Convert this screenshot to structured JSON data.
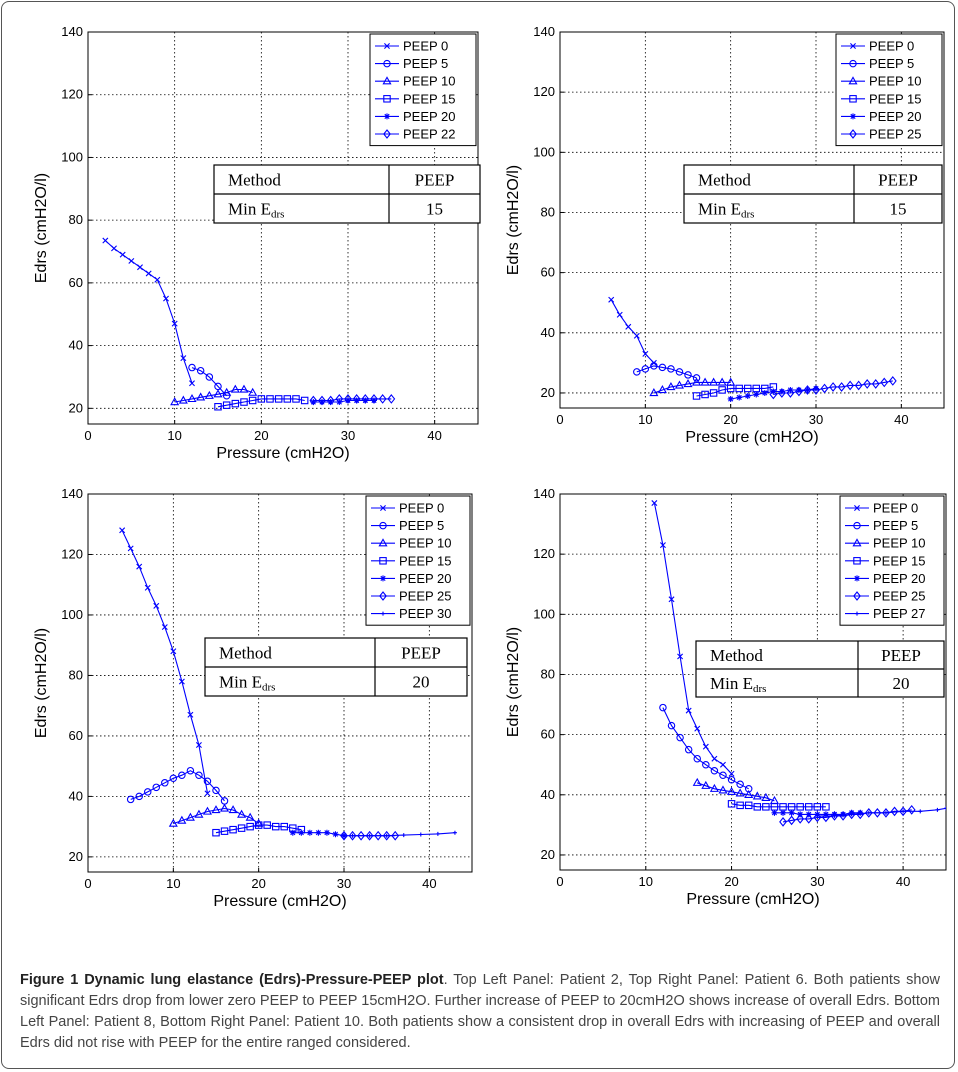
{
  "colors": {
    "series": "#0000ff",
    "frame": "#555555",
    "grid": "#000000"
  },
  "caption": {
    "title": "Figure 1 Dynamic lung elastance (Edrs)-Pressure-PEEP plot",
    "text": ". Top Left Panel: Patient 2, Top Right Panel: Patient 6. Both patients show significant Edrs drop from lower zero PEEP to PEEP 15cmH2O. Further increase of PEEP to 20cmH2O shows increase of overall Edrs. Bottom Left Panel: Patient 8, Bottom Right Panel: Patient 10. Both patients show a consistent drop in overall Edrs with increasing of PEEP and overall Edrs did not rise with PEEP for the entire ranged considered."
  },
  "chart_data": [
    {
      "type": "line",
      "xlabel": "Pressure (cmH2O)",
      "ylabel": "Edrs (cmH2O/l)",
      "xlim": [
        0,
        45
      ],
      "ylim": [
        15,
        140
      ],
      "xticks": [
        0,
        10,
        20,
        30,
        40
      ],
      "yticks": [
        20,
        40,
        60,
        80,
        100,
        120,
        140
      ],
      "grid": true,
      "legend": "top-right",
      "table": {
        "headers": [
          "Method",
          "PEEP"
        ],
        "row": [
          "Min E",
          "drs",
          "15"
        ]
      },
      "series": [
        {
          "name": "PEEP 0",
          "marker": "x",
          "x": [
            2,
            3,
            4,
            5,
            6,
            7,
            8,
            9,
            10,
            11,
            12
          ],
          "y": [
            73.5,
            71,
            69,
            67,
            65,
            63,
            61,
            55,
            47,
            36,
            28
          ]
        },
        {
          "name": "PEEP 5",
          "marker": "o",
          "x": [
            12,
            13,
            14,
            15,
            16
          ],
          "y": [
            33,
            32,
            30,
            27,
            24
          ]
        },
        {
          "name": "PEEP 10",
          "marker": "^",
          "x": [
            10,
            11,
            12,
            13,
            14,
            15,
            16,
            17,
            18,
            19
          ],
          "y": [
            22,
            22.5,
            23,
            23.5,
            24,
            24.5,
            25,
            26,
            26,
            25
          ]
        },
        {
          "name": "PEEP 15",
          "marker": "s",
          "x": [
            15,
            16,
            17,
            18,
            19,
            20,
            21,
            22,
            23,
            24,
            25
          ],
          "y": [
            20.5,
            21,
            21.5,
            22,
            22.5,
            23,
            23,
            23,
            23,
            23,
            22.5
          ]
        },
        {
          "name": "PEEP 20",
          "marker": "*",
          "x": [
            26,
            27,
            28,
            29,
            30,
            31,
            32,
            33
          ],
          "y": [
            22,
            22,
            22,
            22,
            22.5,
            22.5,
            22.5,
            22.5
          ]
        },
        {
          "name": "PEEP 22",
          "marker": "d",
          "x": [
            26,
            27,
            28,
            29,
            30,
            31,
            32,
            33,
            34,
            35
          ],
          "y": [
            22.5,
            22.5,
            22.5,
            23,
            23,
            23,
            23,
            23,
            23,
            23
          ]
        }
      ]
    },
    {
      "type": "line",
      "xlabel": "Pressure (cmH2O)",
      "ylabel": "Edrs (cmH2O/l)",
      "xlim": [
        0,
        45
      ],
      "ylim": [
        15,
        140
      ],
      "xticks": [
        0,
        10,
        20,
        30,
        40
      ],
      "yticks": [
        20,
        40,
        60,
        80,
        100,
        120,
        140
      ],
      "grid": true,
      "legend": "top-right",
      "table": {
        "headers": [
          "Method",
          "PEEP"
        ],
        "row": [
          "Min E",
          "drs",
          "15"
        ]
      },
      "series": [
        {
          "name": "PEEP 0",
          "marker": "x",
          "x": [
            6,
            7,
            8,
            9,
            10,
            11
          ],
          "y": [
            51,
            46,
            42,
            39,
            33,
            30
          ]
        },
        {
          "name": "PEEP 5",
          "marker": "o",
          "x": [
            9,
            10,
            11,
            12,
            13,
            14,
            15,
            16
          ],
          "y": [
            27,
            28,
            29,
            28.5,
            28,
            27,
            26,
            25
          ]
        },
        {
          "name": "PEEP 10",
          "marker": "^",
          "x": [
            11,
            12,
            13,
            14,
            15,
            16,
            17,
            18,
            19,
            20
          ],
          "y": [
            20,
            21,
            22,
            22.5,
            23,
            23.5,
            23.5,
            23.5,
            23.5,
            23.5
          ]
        },
        {
          "name": "PEEP 15",
          "marker": "s",
          "x": [
            16,
            17,
            18,
            19,
            20,
            21,
            22,
            23,
            24,
            25
          ],
          "y": [
            19,
            19.5,
            20,
            21,
            21.5,
            21.5,
            21.5,
            21.5,
            21.5,
            22
          ]
        },
        {
          "name": "PEEP 20",
          "marker": "*",
          "x": [
            20,
            21,
            22,
            23,
            24,
            25,
            26,
            27,
            28,
            29,
            30
          ],
          "y": [
            18,
            18.5,
            19,
            19.5,
            20,
            20.5,
            20.5,
            21,
            21,
            21,
            21.5
          ]
        },
        {
          "name": "PEEP 25",
          "marker": "d",
          "x": [
            25,
            26,
            27,
            28,
            29,
            30,
            31,
            32,
            33,
            34,
            35,
            36,
            37,
            38,
            39
          ],
          "y": [
            19.5,
            20,
            20,
            20.5,
            21,
            21,
            21.5,
            22,
            22,
            22.5,
            22.5,
            23,
            23,
            23.5,
            24
          ]
        }
      ]
    },
    {
      "type": "line",
      "xlabel": "Pressure (cmH2O)",
      "ylabel": "Edrs (cmH2O/l)",
      "xlim": [
        0,
        45
      ],
      "ylim": [
        15,
        140
      ],
      "xticks": [
        0,
        10,
        20,
        30,
        40
      ],
      "yticks": [
        20,
        40,
        60,
        80,
        100,
        120,
        140
      ],
      "grid": true,
      "legend": "top-right",
      "table": {
        "headers": [
          "Method",
          "PEEP"
        ],
        "row": [
          "Min E",
          "drs",
          "20"
        ]
      },
      "series": [
        {
          "name": "PEEP 0",
          "marker": "x",
          "x": [
            4,
            5,
            6,
            7,
            8,
            9,
            10,
            11,
            12,
            13,
            14
          ],
          "y": [
            128,
            122,
            116,
            109,
            103,
            96,
            88,
            78,
            67,
            57,
            41
          ]
        },
        {
          "name": "PEEP 5",
          "marker": "o",
          "x": [
            5,
            6,
            7,
            8,
            9,
            10,
            11,
            12,
            13,
            14,
            15,
            16
          ],
          "y": [
            39,
            40,
            41.5,
            43,
            44.5,
            46,
            47,
            48.5,
            47,
            45,
            42,
            38.5
          ]
        },
        {
          "name": "PEEP 10",
          "marker": "^",
          "x": [
            10,
            11,
            12,
            13,
            14,
            15,
            16,
            17,
            18,
            19,
            20
          ],
          "y": [
            31,
            32,
            33,
            34,
            35,
            35.5,
            36,
            35.5,
            34,
            33,
            31
          ]
        },
        {
          "name": "PEEP 15",
          "marker": "s",
          "x": [
            15,
            16,
            17,
            18,
            19,
            20,
            21,
            22,
            23,
            24,
            25
          ],
          "y": [
            28,
            28.5,
            29,
            29.5,
            30,
            30.5,
            30.5,
            30,
            30,
            29.5,
            29
          ]
        },
        {
          "name": "PEEP 20",
          "marker": "*",
          "x": [
            24,
            25,
            26,
            27,
            28,
            29,
            30
          ],
          "y": [
            28,
            28,
            28,
            28,
            28,
            27.5,
            27
          ]
        },
        {
          "name": "PEEP 25",
          "marker": "d",
          "x": [
            30,
            31,
            32,
            33,
            34,
            35,
            36
          ],
          "y": [
            27,
            27,
            27,
            27,
            27,
            27,
            27
          ]
        },
        {
          "name": "PEEP 30",
          "marker": "+",
          "x": [
            31,
            33,
            35,
            37,
            39,
            41,
            43
          ],
          "y": [
            27,
            27,
            27,
            27.2,
            27.4,
            27.6,
            28
          ]
        }
      ]
    },
    {
      "type": "line",
      "xlabel": "Pressure (cmH2O)",
      "ylabel": "Edrs (cmH2O/l)",
      "xlim": [
        0,
        45
      ],
      "ylim": [
        15,
        140
      ],
      "xticks": [
        0,
        10,
        20,
        30,
        40
      ],
      "yticks": [
        20,
        40,
        60,
        80,
        100,
        120,
        140
      ],
      "grid": true,
      "legend": "top-right",
      "table": {
        "headers": [
          "Method",
          "PEEP"
        ],
        "row": [
          "Min E",
          "drs",
          "20"
        ]
      },
      "series": [
        {
          "name": "PEEP 0",
          "marker": "x",
          "x": [
            11,
            12,
            13,
            14,
            15,
            16,
            17,
            18,
            19,
            20
          ],
          "y": [
            137,
            123,
            105,
            86,
            68,
            62,
            56,
            52,
            50,
            47
          ]
        },
        {
          "name": "PEEP 5",
          "marker": "o",
          "x": [
            12,
            13,
            14,
            15,
            16,
            17,
            18,
            19,
            20,
            21,
            22
          ],
          "y": [
            69,
            63,
            59,
            55,
            52,
            50,
            48,
            46.5,
            45,
            43.5,
            42
          ]
        },
        {
          "name": "PEEP 10",
          "marker": "^",
          "x": [
            16,
            17,
            18,
            19,
            20,
            21,
            22,
            23,
            24,
            25
          ],
          "y": [
            44,
            43,
            42,
            41.5,
            41,
            40.5,
            40,
            39.5,
            39,
            38
          ]
        },
        {
          "name": "PEEP 15",
          "marker": "s",
          "x": [
            20,
            21,
            22,
            23,
            24,
            25,
            26,
            27,
            28,
            29,
            30,
            31
          ],
          "y": [
            37,
            36.5,
            36.5,
            36,
            36,
            36,
            36,
            36,
            36,
            36,
            36,
            36
          ]
        },
        {
          "name": "PEEP 20",
          "marker": "*",
          "x": [
            25,
            26,
            27,
            28,
            29,
            30,
            31,
            32,
            33,
            34,
            35
          ],
          "y": [
            34,
            34,
            34,
            33.5,
            33.5,
            33.5,
            33.5,
            33.5,
            33.5,
            34,
            34
          ]
        },
        {
          "name": "PEEP 25",
          "marker": "d",
          "x": [
            26,
            27,
            28,
            29,
            30,
            31,
            32,
            33,
            34,
            35,
            36,
            37,
            38,
            39,
            40,
            41
          ],
          "y": [
            31,
            31.5,
            32,
            32,
            32.5,
            32.5,
            33,
            33,
            33.5,
            33.5,
            34,
            34,
            34,
            34.5,
            34.5,
            35
          ]
        },
        {
          "name": "PEEP 27",
          "marker": "+",
          "x": [
            30,
            32,
            34,
            36,
            38,
            40,
            42,
            44,
            45
          ],
          "y": [
            33,
            33,
            33.5,
            34,
            34,
            34.5,
            34.5,
            35,
            35.5
          ]
        }
      ]
    }
  ]
}
